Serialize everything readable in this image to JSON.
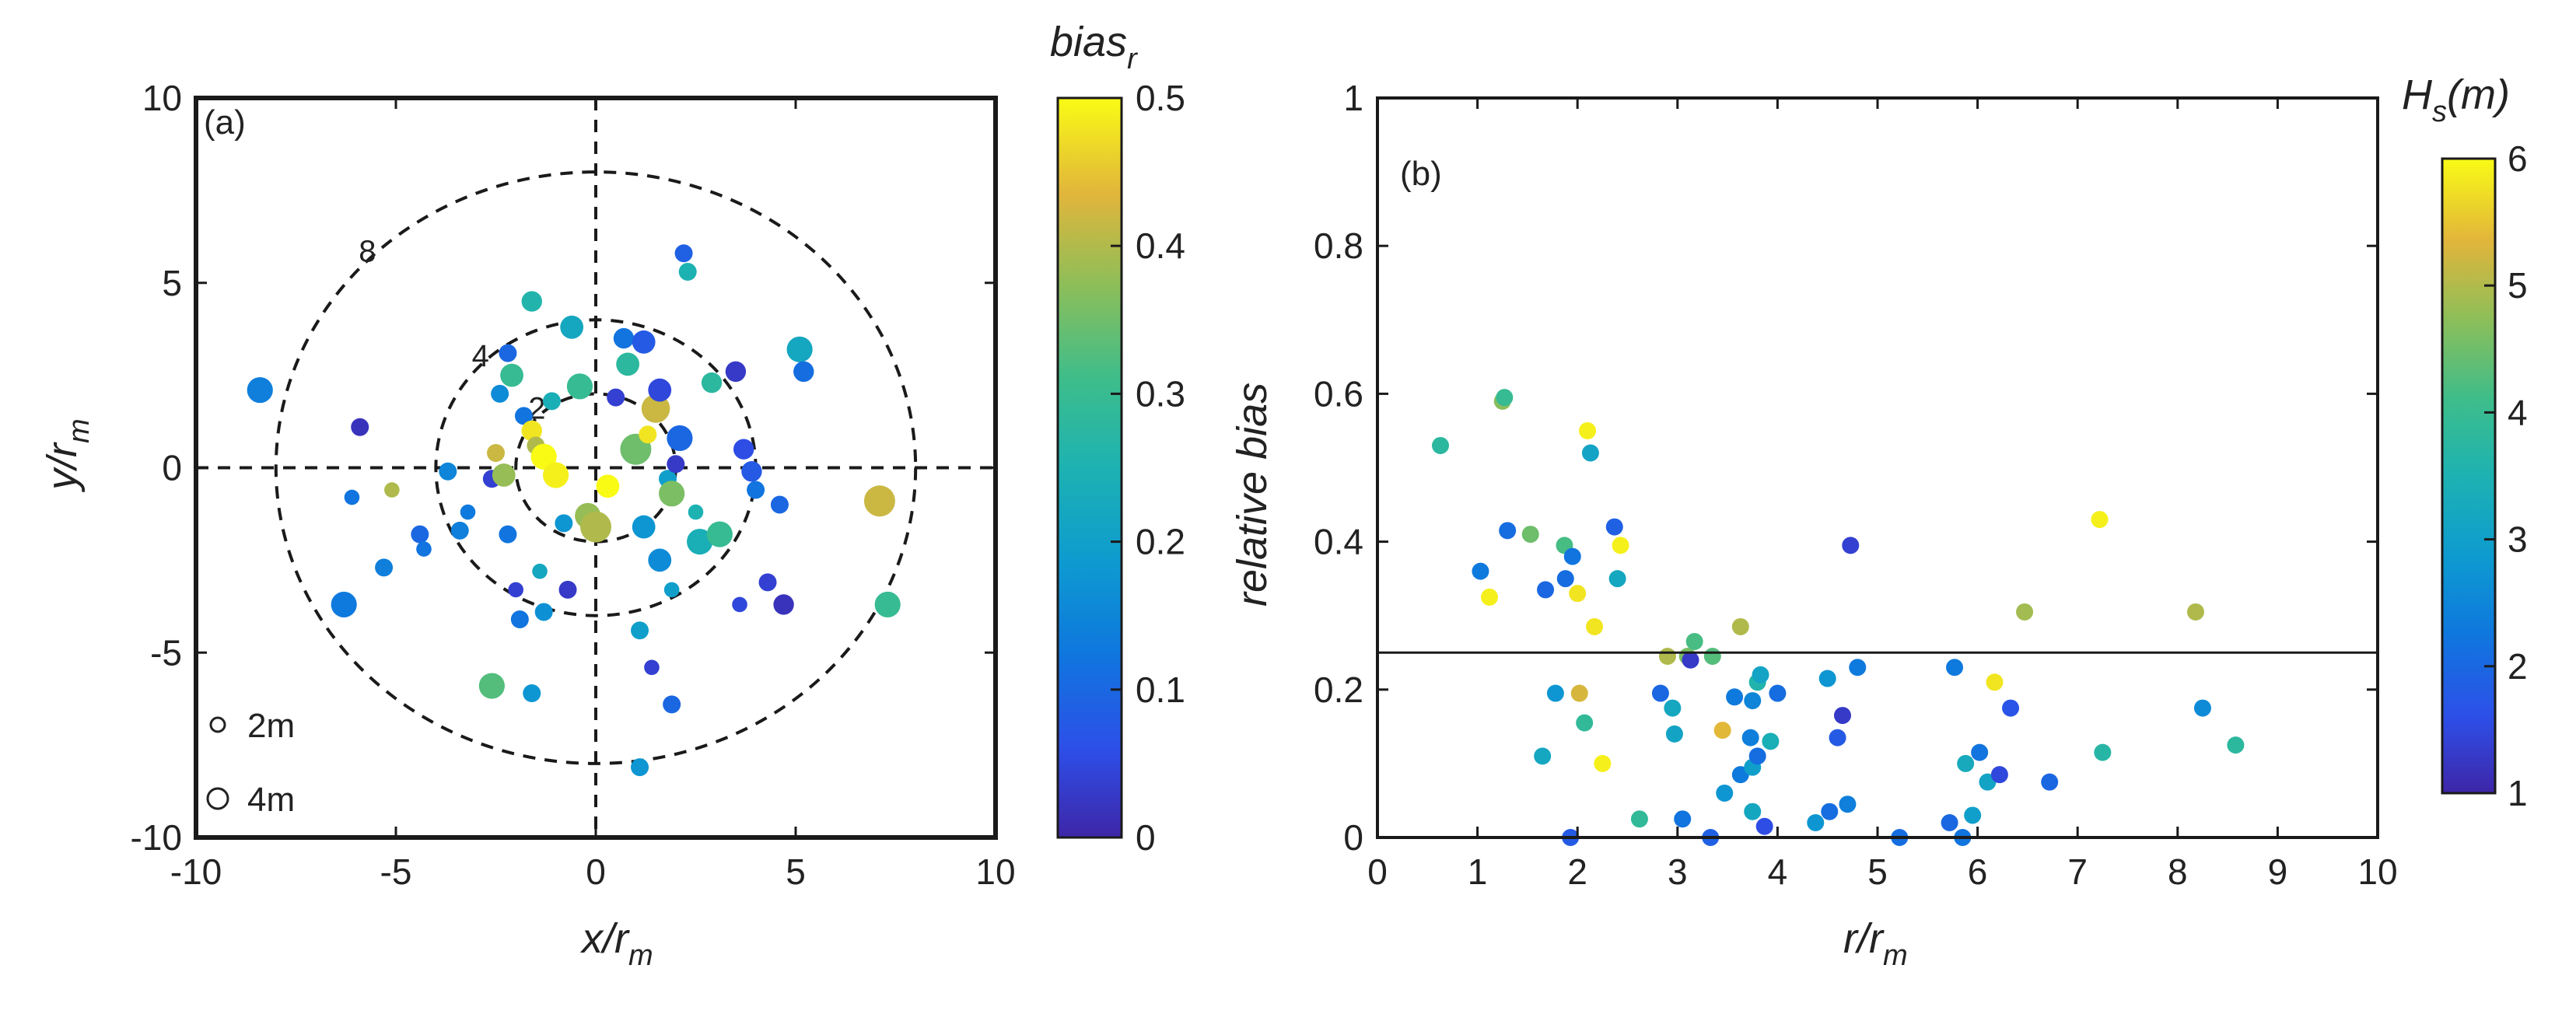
{
  "chart_data": [
    {
      "id": "panel-a",
      "type": "scatter",
      "panel_label": "(a)",
      "xlabel": {
        "main": "x/r",
        "sub": "m"
      },
      "ylabel": {
        "main": "y/r",
        "sub": "m"
      },
      "xlim": [
        -10,
        10
      ],
      "ylim": [
        -10,
        10
      ],
      "xticks": [
        "-10",
        "-5",
        "0",
        "5",
        "10"
      ],
      "yticks": [
        "-10",
        "-5",
        "0",
        "5",
        "10"
      ],
      "rings": [
        {
          "r": 2,
          "label": "2"
        },
        {
          "r": 4,
          "label": "4"
        },
        {
          "r": 8,
          "label": "8"
        }
      ],
      "size_legend": [
        {
          "label": "2m",
          "size": 2
        },
        {
          "label": "4m",
          "size": 4
        }
      ],
      "colorbar": {
        "label": {
          "main": "bias",
          "sub": "r"
        },
        "range": [
          0,
          0.5
        ],
        "ticks": [
          "0",
          "0.1",
          "0.2",
          "0.3",
          "0.4",
          "0.5"
        ]
      },
      "color_variable": "bias_r",
      "size_variable": "Hs (m)",
      "points": [
        {
          "x": -8.4,
          "y": 2.1,
          "s": 4,
          "c": 0.14
        },
        {
          "x": -6.1,
          "y": -0.8,
          "s": 2,
          "c": 0.12
        },
        {
          "x": -6.3,
          "y": -3.7,
          "s": 4,
          "c": 0.13
        },
        {
          "x": -5.9,
          "y": 1.1,
          "s": 2.5,
          "c": 0.02
        },
        {
          "x": -5.3,
          "y": -2.7,
          "s": 2.5,
          "c": 0.14
        },
        {
          "x": -5.1,
          "y": -0.6,
          "s": 2,
          "c": 0.4
        },
        {
          "x": -4.4,
          "y": -1.8,
          "s": 2.5,
          "c": 0.1
        },
        {
          "x": -4.3,
          "y": -2.2,
          "s": 2,
          "c": 0.12
        },
        {
          "x": -3.7,
          "y": -0.1,
          "s": 2.5,
          "c": 0.15
        },
        {
          "x": -3.4,
          "y": -1.7,
          "s": 2.5,
          "c": 0.14
        },
        {
          "x": -3.2,
          "y": -1.2,
          "s": 2,
          "c": 0.13
        },
        {
          "x": -2.6,
          "y": -0.3,
          "s": 2.5,
          "c": 0.04
        },
        {
          "x": -2.5,
          "y": 0.4,
          "s": 2.5,
          "c": 0.42
        },
        {
          "x": -2.6,
          "y": -5.9,
          "s": 4,
          "c": 0.33
        },
        {
          "x": -2.4,
          "y": 2.0,
          "s": 2.5,
          "c": 0.16
        },
        {
          "x": -2.3,
          "y": -0.2,
          "s": 3.5,
          "c": 0.38
        },
        {
          "x": -2.2,
          "y": 3.1,
          "s": 2.5,
          "c": 0.1
        },
        {
          "x": -2.2,
          "y": -1.8,
          "s": 2.5,
          "c": 0.12
        },
        {
          "x": -2.1,
          "y": 2.5,
          "s": 3.5,
          "c": 0.3
        },
        {
          "x": -2.0,
          "y": -3.3,
          "s": 2,
          "c": 0.04
        },
        {
          "x": -1.9,
          "y": -4.1,
          "s": 2.5,
          "c": 0.12
        },
        {
          "x": -1.8,
          "y": 1.4,
          "s": 2.5,
          "c": 0.12
        },
        {
          "x": -1.6,
          "y": 1.0,
          "s": 3,
          "c": 0.48
        },
        {
          "x": -1.6,
          "y": -6.1,
          "s": 2.5,
          "c": 0.18
        },
        {
          "x": -1.6,
          "y": 4.5,
          "s": 3,
          "c": 0.26
        },
        {
          "x": -1.5,
          "y": 0.6,
          "s": 2.5,
          "c": 0.4
        },
        {
          "x": -1.4,
          "y": -2.8,
          "s": 2,
          "c": 0.22
        },
        {
          "x": -1.3,
          "y": 0.3,
          "s": 4,
          "c": 0.5
        },
        {
          "x": -1.3,
          "y": -3.9,
          "s": 2.5,
          "c": 0.17
        },
        {
          "x": -1.1,
          "y": 1.8,
          "s": 2.5,
          "c": 0.24
        },
        {
          "x": -1.0,
          "y": -0.2,
          "s": 4,
          "c": 0.49
        },
        {
          "x": -0.8,
          "y": -1.5,
          "s": 2.5,
          "c": 0.18
        },
        {
          "x": -0.7,
          "y": -3.3,
          "s": 2.5,
          "c": 0.03
        },
        {
          "x": -0.6,
          "y": 3.8,
          "s": 3.5,
          "c": 0.22
        },
        {
          "x": -0.4,
          "y": 2.2,
          "s": 4,
          "c": 0.3
        },
        {
          "x": -0.2,
          "y": -1.3,
          "s": 4,
          "c": 0.38
        },
        {
          "x": 0.0,
          "y": -1.6,
          "s": 5,
          "c": 0.4
        },
        {
          "x": 0.3,
          "y": -0.5,
          "s": 3.5,
          "c": 0.5
        },
        {
          "x": 0.5,
          "y": 1.9,
          "s": 2.5,
          "c": 0.04
        },
        {
          "x": 0.7,
          "y": 3.5,
          "s": 3,
          "c": 0.12
        },
        {
          "x": 0.8,
          "y": 2.8,
          "s": 3.5,
          "c": 0.28
        },
        {
          "x": 1.0,
          "y": 0.5,
          "s": 5,
          "c": 0.35
        },
        {
          "x": 1.1,
          "y": -4.4,
          "s": 2.5,
          "c": 0.2
        },
        {
          "x": 1.1,
          "y": -8.1,
          "s": 2.5,
          "c": 0.18
        },
        {
          "x": 1.2,
          "y": 3.4,
          "s": 3.5,
          "c": 0.08
        },
        {
          "x": 1.2,
          "y": -1.6,
          "s": 3.5,
          "c": 0.18
        },
        {
          "x": 1.3,
          "y": 0.9,
          "s": 2.5,
          "c": 0.48
        },
        {
          "x": 1.4,
          "y": -5.4,
          "s": 2,
          "c": 0.04
        },
        {
          "x": 1.5,
          "y": 1.6,
          "s": 4.5,
          "c": 0.42
        },
        {
          "x": 1.6,
          "y": 2.1,
          "s": 3.5,
          "c": 0.05
        },
        {
          "x": 1.6,
          "y": -2.5,
          "s": 3.5,
          "c": 0.16
        },
        {
          "x": 1.8,
          "y": -0.3,
          "s": 2.5,
          "c": 0.2
        },
        {
          "x": 1.9,
          "y": -0.7,
          "s": 4,
          "c": 0.36
        },
        {
          "x": 1.9,
          "y": -3.3,
          "s": 2,
          "c": 0.2
        },
        {
          "x": 1.9,
          "y": -6.4,
          "s": 2.5,
          "c": 0.1
        },
        {
          "x": 2.0,
          "y": 0.1,
          "s": 2.5,
          "c": 0.03
        },
        {
          "x": 2.1,
          "y": 0.8,
          "s": 4,
          "c": 0.1
        },
        {
          "x": 2.2,
          "y": 5.8,
          "s": 2.5,
          "c": 0.09
        },
        {
          "x": 2.3,
          "y": 5.3,
          "s": 2.5,
          "c": 0.25
        },
        {
          "x": 2.5,
          "y": -1.2,
          "s": 2,
          "c": 0.25
        },
        {
          "x": 2.6,
          "y": -2.0,
          "s": 4,
          "c": 0.24
        },
        {
          "x": 2.9,
          "y": 2.3,
          "s": 3,
          "c": 0.28
        },
        {
          "x": 3.1,
          "y": -1.8,
          "s": 4,
          "c": 0.3
        },
        {
          "x": 3.5,
          "y": 2.6,
          "s": 3,
          "c": 0.03
        },
        {
          "x": 3.6,
          "y": -3.7,
          "s": 2,
          "c": 0.05
        },
        {
          "x": 3.7,
          "y": 0.5,
          "s": 3,
          "c": 0.06
        },
        {
          "x": 3.9,
          "y": -0.1,
          "s": 3,
          "c": 0.08
        },
        {
          "x": 4.0,
          "y": -0.6,
          "s": 2.5,
          "c": 0.12
        },
        {
          "x": 4.3,
          "y": -3.1,
          "s": 2.5,
          "c": 0.04
        },
        {
          "x": 4.6,
          "y": -1.0,
          "s": 2.5,
          "c": 0.1
        },
        {
          "x": 4.7,
          "y": -3.7,
          "s": 3,
          "c": 0.02
        },
        {
          "x": 5.1,
          "y": 3.2,
          "s": 4,
          "c": 0.22
        },
        {
          "x": 5.2,
          "y": 2.6,
          "s": 3,
          "c": 0.11
        },
        {
          "x": 7.1,
          "y": -0.9,
          "s": 5,
          "c": 0.42
        },
        {
          "x": 7.3,
          "y": -3.7,
          "s": 4,
          "c": 0.3
        }
      ]
    },
    {
      "id": "panel-b",
      "type": "scatter",
      "panel_label": "(b)",
      "xlabel": {
        "main": "r/r",
        "sub": "m"
      },
      "ylabel": {
        "main": "relative bias"
      },
      "xlim": [
        0,
        10
      ],
      "ylim": [
        0,
        1
      ],
      "xticks": [
        "0",
        "1",
        "2",
        "3",
        "4",
        "5",
        "6",
        "7",
        "8",
        "9",
        "10"
      ],
      "yticks": [
        "0",
        "0.2",
        "0.4",
        "0.6",
        "0.8",
        "1"
      ],
      "reference_line_y": 0.25,
      "colorbar": {
        "label": {
          "main": "H",
          "sub": "s",
          "tail": "(m)"
        },
        "range": [
          1,
          6
        ],
        "ticks": [
          "1",
          "2",
          "3",
          "4",
          "5",
          "6"
        ]
      },
      "color_variable": "Hs (m)",
      "points": [
        {
          "x": 0.63,
          "y": 0.53,
          "c": 3.8
        },
        {
          "x": 1.03,
          "y": 0.36,
          "c": 2.3
        },
        {
          "x": 1.12,
          "y": 0.325,
          "c": 5.9
        },
        {
          "x": 1.25,
          "y": 0.59,
          "c": 4.7
        },
        {
          "x": 1.27,
          "y": 0.595,
          "c": 4.0
        },
        {
          "x": 1.3,
          "y": 0.415,
          "c": 2.1
        },
        {
          "x": 1.53,
          "y": 0.41,
          "c": 4.5
        },
        {
          "x": 1.65,
          "y": 0.11,
          "c": 3.2
        },
        {
          "x": 1.68,
          "y": 0.335,
          "c": 2.0
        },
        {
          "x": 1.78,
          "y": 0.195,
          "c": 2.8
        },
        {
          "x": 1.87,
          "y": 0.395,
          "c": 4.2
        },
        {
          "x": 1.88,
          "y": 0.35,
          "c": 2.1
        },
        {
          "x": 1.93,
          "y": 0.0,
          "c": 1.8
        },
        {
          "x": 1.95,
          "y": 0.38,
          "c": 2.2
        },
        {
          "x": 2.0,
          "y": 0.33,
          "c": 5.8
        },
        {
          "x": 2.02,
          "y": 0.195,
          "c": 5.3
        },
        {
          "x": 2.07,
          "y": 0.155,
          "c": 3.9
        },
        {
          "x": 2.1,
          "y": 0.55,
          "c": 5.9
        },
        {
          "x": 2.13,
          "y": 0.52,
          "c": 3.1
        },
        {
          "x": 2.17,
          "y": 0.285,
          "c": 5.8
        },
        {
          "x": 2.25,
          "y": 0.1,
          "c": 5.9
        },
        {
          "x": 2.37,
          "y": 0.42,
          "c": 1.9
        },
        {
          "x": 2.4,
          "y": 0.35,
          "c": 3.2
        },
        {
          "x": 2.43,
          "y": 0.395,
          "c": 5.9
        },
        {
          "x": 2.62,
          "y": 0.025,
          "c": 3.9
        },
        {
          "x": 2.83,
          "y": 0.195,
          "c": 2.0
        },
        {
          "x": 2.9,
          "y": 0.245,
          "c": 5.0
        },
        {
          "x": 2.95,
          "y": 0.175,
          "c": 3.2
        },
        {
          "x": 2.97,
          "y": 0.14,
          "c": 3.1
        },
        {
          "x": 3.05,
          "y": 0.025,
          "c": 2.2
        },
        {
          "x": 3.1,
          "y": 0.245,
          "c": 4.6
        },
        {
          "x": 3.13,
          "y": 0.24,
          "c": 1.3
        },
        {
          "x": 3.17,
          "y": 0.265,
          "c": 4.2
        },
        {
          "x": 3.33,
          "y": 0.0,
          "c": 1.9
        },
        {
          "x": 3.35,
          "y": 0.245,
          "c": 4.3
        },
        {
          "x": 3.45,
          "y": 0.145,
          "c": 5.4
        },
        {
          "x": 3.47,
          "y": 0.06,
          "c": 2.8
        },
        {
          "x": 3.57,
          "y": 0.19,
          "c": 2.3
        },
        {
          "x": 3.63,
          "y": 0.085,
          "c": 2.3
        },
        {
          "x": 3.63,
          "y": 0.285,
          "c": 5.0
        },
        {
          "x": 3.73,
          "y": 0.135,
          "c": 2.4
        },
        {
          "x": 3.75,
          "y": 0.095,
          "c": 3.0
        },
        {
          "x": 3.75,
          "y": 0.185,
          "c": 2.5
        },
        {
          "x": 3.75,
          "y": 0.035,
          "c": 3.2
        },
        {
          "x": 3.8,
          "y": 0.21,
          "c": 3.6
        },
        {
          "x": 3.8,
          "y": 0.11,
          "c": 2.1
        },
        {
          "x": 3.83,
          "y": 0.22,
          "c": 3.1
        },
        {
          "x": 3.87,
          "y": 0.015,
          "c": 1.6
        },
        {
          "x": 3.93,
          "y": 0.13,
          "c": 3.4
        },
        {
          "x": 4.0,
          "y": 0.195,
          "c": 2.1
        },
        {
          "x": 4.38,
          "y": 0.02,
          "c": 2.8
        },
        {
          "x": 4.5,
          "y": 0.215,
          "c": 2.8
        },
        {
          "x": 4.52,
          "y": 0.035,
          "c": 2.1
        },
        {
          "x": 4.6,
          "y": 0.135,
          "c": 1.8
        },
        {
          "x": 4.65,
          "y": 0.165,
          "c": 1.3
        },
        {
          "x": 4.7,
          "y": 0.045,
          "c": 2.4
        },
        {
          "x": 4.73,
          "y": 0.395,
          "c": 1.4
        },
        {
          "x": 4.8,
          "y": 0.23,
          "c": 2.3
        },
        {
          "x": 5.22,
          "y": 0.0,
          "c": 2.1
        },
        {
          "x": 5.72,
          "y": 0.02,
          "c": 2.0
        },
        {
          "x": 5.77,
          "y": 0.23,
          "c": 2.3
        },
        {
          "x": 5.85,
          "y": 0.0,
          "c": 2.2
        },
        {
          "x": 5.88,
          "y": 0.1,
          "c": 3.3
        },
        {
          "x": 5.95,
          "y": 0.03,
          "c": 3.0
        },
        {
          "x": 6.02,
          "y": 0.115,
          "c": 2.2
        },
        {
          "x": 6.1,
          "y": 0.075,
          "c": 3.1
        },
        {
          "x": 6.17,
          "y": 0.21,
          "c": 5.8
        },
        {
          "x": 6.22,
          "y": 0.085,
          "c": 1.5
        },
        {
          "x": 6.33,
          "y": 0.175,
          "c": 1.7
        },
        {
          "x": 6.47,
          "y": 0.305,
          "c": 4.9
        },
        {
          "x": 6.72,
          "y": 0.075,
          "c": 2.0
        },
        {
          "x": 7.22,
          "y": 0.43,
          "c": 5.9
        },
        {
          "x": 7.25,
          "y": 0.115,
          "c": 3.7
        },
        {
          "x": 8.18,
          "y": 0.305,
          "c": 5.0
        },
        {
          "x": 8.25,
          "y": 0.175,
          "c": 2.6
        },
        {
          "x": 8.58,
          "y": 0.125,
          "c": 3.8
        }
      ]
    }
  ]
}
